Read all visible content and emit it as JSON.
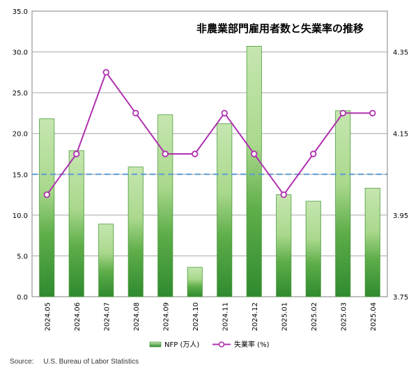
{
  "chart_data": {
    "type": "bar+line",
    "title": "非農業部門雇用者数と失業率の推移",
    "categories": [
      "2024.05",
      "2024.06",
      "2024.07",
      "2024.08",
      "2024.09",
      "2024.10",
      "2024.11",
      "2024.12",
      "2025.01",
      "2025.02",
      "2025.03",
      "2025.04"
    ],
    "series": [
      {
        "name": "NFP (万人)",
        "type": "bar",
        "axis": "left",
        "values": [
          21.8,
          17.9,
          8.9,
          15.9,
          22.3,
          3.6,
          21.2,
          30.7,
          12.5,
          11.7,
          22.8,
          13.3
        ]
      },
      {
        "name": "失業率 (%)",
        "type": "line",
        "axis": "right",
        "values": [
          4.0,
          4.1,
          4.3,
          4.2,
          4.1,
          4.1,
          4.2,
          4.1,
          4.0,
          4.1,
          4.2,
          4.2
        ]
      }
    ],
    "y_left": {
      "min": 0,
      "max": 35,
      "ticks": [
        "0.0",
        "5.0",
        "10.0",
        "15.0",
        "20.0",
        "25.0",
        "30.0",
        "35.0"
      ]
    },
    "y_right": {
      "min": 3.75,
      "max": 4.45,
      "ticks": [
        "3.75",
        "3.95",
        "4.15",
        "4.35"
      ]
    },
    "reference_line": {
      "axis": "left",
      "value": 15,
      "style": "dashed",
      "color": "#5b9bd5"
    },
    "grid": true,
    "legend_placement": "bottom",
    "colors": {
      "bar_light": "#c6e6b0",
      "bar_dark": "#2f8a2f",
      "line": "#b030b0",
      "grid": "#a6a6a6"
    }
  },
  "source": {
    "label": "Source:",
    "text": "U.S. Bureau of Labor Statistics"
  }
}
